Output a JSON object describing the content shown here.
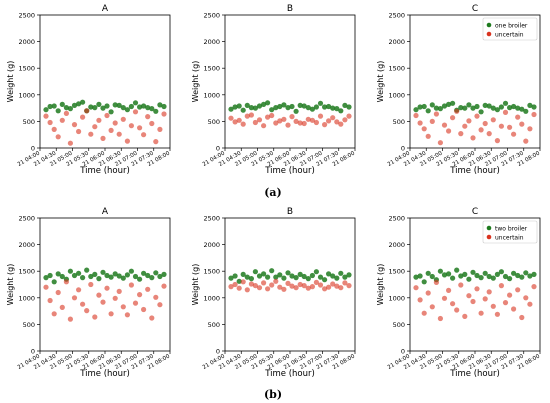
{
  "captions": [
    "(a)",
    "(b)"
  ],
  "legend_colors": {
    "green": "#1e7a1e",
    "red": "#d9331f"
  },
  "chart_data": [
    {
      "type": "scatter",
      "title": "A",
      "xlabel": "Time (hour)",
      "ylabel": "Weight (g)",
      "ylim": [
        0,
        2500
      ],
      "yticks": [
        0,
        500,
        1000,
        1500,
        2000,
        2500
      ],
      "xticks": [
        "21 04:00",
        "21 04:30",
        "21 05:00",
        "21 05:30",
        "21 06:00",
        "21 06:30",
        "21 07:00",
        "21 07:30",
        "21 08:00"
      ],
      "legend": null,
      "series": [
        {
          "name": "one broiler",
          "color": "#1e7a1e",
          "values": [
            720,
            780,
            790,
            700,
            820,
            760,
            740,
            800,
            830,
            860,
            700,
            770,
            760,
            820,
            750,
            790,
            680,
            810,
            800,
            760,
            720,
            780,
            850,
            770,
            790,
            760,
            740,
            690,
            810,
            780
          ]
        },
        {
          "name": "uncertain",
          "color": "#d9331f",
          "values": [
            600,
            480,
            350,
            210,
            520,
            650,
            90,
            440,
            310,
            580,
            700,
            260,
            400,
            520,
            180,
            610,
            330,
            470,
            260,
            540,
            130,
            420,
            680,
            380,
            250,
            590,
            460,
            120,
            350,
            640
          ]
        }
      ]
    },
    {
      "type": "scatter",
      "title": "B",
      "xlabel": "Time (hour)",
      "ylabel": "Weight (g)",
      "ylim": [
        0,
        2500
      ],
      "yticks": [
        0,
        500,
        1000,
        1500,
        2000,
        2500
      ],
      "xticks": [
        "21 04:00",
        "21 04:30",
        "21 05:00",
        "21 05:30",
        "21 06:00",
        "21 06:30",
        "21 07:00",
        "21 07:30",
        "21 08:00"
      ],
      "legend": null,
      "series": [
        {
          "name": "one broiler",
          "color": "#1e7a1e",
          "values": [
            730,
            770,
            790,
            710,
            800,
            760,
            750,
            790,
            820,
            850,
            720,
            760,
            780,
            810,
            760,
            780,
            690,
            800,
            790,
            760,
            730,
            770,
            840,
            770,
            780,
            750,
            740,
            700,
            800,
            770
          ]
        },
        {
          "name": "uncertain",
          "color": "#d9331f",
          "values": [
            560,
            490,
            520,
            450,
            600,
            620,
            480,
            530,
            420,
            580,
            610,
            470,
            510,
            540,
            430,
            590,
            500,
            470,
            460,
            540,
            520,
            480,
            600,
            440,
            510,
            570,
            490,
            450,
            530,
            600
          ]
        }
      ]
    },
    {
      "type": "scatter",
      "title": "C",
      "xlabel": "Time (hour)",
      "ylabel": "Weight (g)",
      "ylim": [
        0,
        2500
      ],
      "yticks": [
        0,
        500,
        1000,
        1500,
        2000,
        2500
      ],
      "xticks": [
        "21 04:00",
        "21 04:30",
        "21 05:00",
        "21 05:30",
        "21 06:00",
        "21 06:30",
        "21 07:00",
        "21 07:30",
        "21 08:00"
      ],
      "legend": "top-right",
      "series": [
        {
          "name": "one broiler",
          "color": "#1e7a1e",
          "values": [
            720,
            770,
            780,
            700,
            810,
            750,
            740,
            790,
            820,
            840,
            710,
            760,
            750,
            810,
            750,
            780,
            680,
            800,
            790,
            750,
            720,
            770,
            840,
            760,
            780,
            750,
            730,
            690,
            800,
            770
          ]
        },
        {
          "name": "uncertain",
          "color": "#d9331f",
          "values": [
            610,
            470,
            360,
            220,
            500,
            640,
            100,
            430,
            320,
            570,
            690,
            270,
            410,
            510,
            190,
            600,
            340,
            460,
            270,
            530,
            140,
            410,
            670,
            390,
            260,
            580,
            450,
            130,
            360,
            630
          ]
        }
      ]
    },
    {
      "type": "scatter",
      "title": "A",
      "xlabel": "Time (hour)",
      "ylabel": "Weight (g)",
      "ylim": [
        0,
        2500
      ],
      "yticks": [
        0,
        500,
        1000,
        1500,
        2000,
        2500
      ],
      "xticks": [
        "21 04:00",
        "21 04:30",
        "21 05:00",
        "21 05:30",
        "21 06:00",
        "21 06:30",
        "21 07:00",
        "21 07:30",
        "21 08:00"
      ],
      "legend": null,
      "series": [
        {
          "name": "two broiler",
          "color": "#1e7a1e",
          "values": [
            1380,
            1420,
            1300,
            1450,
            1400,
            1350,
            1500,
            1420,
            1460,
            1380,
            1520,
            1400,
            1440,
            1360,
            1480,
            1420,
            1390,
            1450,
            1410,
            1370,
            1430,
            1500,
            1400,
            1350,
            1460,
            1420,
            1380,
            1470,
            1400,
            1440
          ]
        },
        {
          "name": "uncertain",
          "color": "#d9331f",
          "values": [
            1200,
            950,
            700,
            1100,
            820,
            1300,
            600,
            1000,
            1150,
            880,
            760,
            1250,
            640,
            1050,
            920,
            1180,
            700,
            990,
            1120,
            830,
            680,
            1240,
            900,
            1060,
            780,
            1160,
            620,
            1010,
            870,
            1220
          ]
        }
      ]
    },
    {
      "type": "scatter",
      "title": "B",
      "xlabel": "Time (hour)",
      "ylabel": "Weight (g)",
      "ylim": [
        0,
        2500
      ],
      "yticks": [
        0,
        500,
        1000,
        1500,
        2000,
        2500
      ],
      "xticks": [
        "21 04:00",
        "21 04:30",
        "21 05:00",
        "21 05:30",
        "21 06:00",
        "21 06:30",
        "21 07:00",
        "21 07:30",
        "21 08:00"
      ],
      "legend": null,
      "series": [
        {
          "name": "two broiler",
          "color": "#1e7a1e",
          "values": [
            1370,
            1410,
            1310,
            1440,
            1390,
            1360,
            1490,
            1410,
            1450,
            1390,
            1510,
            1390,
            1430,
            1370,
            1470,
            1410,
            1380,
            1440,
            1400,
            1360,
            1420,
            1490,
            1390,
            1340,
            1450,
            1410,
            1370,
            1460,
            1390,
            1430
          ]
        },
        {
          "name": "uncertain",
          "color": "#d9331f",
          "values": [
            1210,
            1250,
            1180,
            1300,
            1150,
            1260,
            1230,
            1190,
            1280,
            1170,
            1240,
            1310,
            1200,
            1160,
            1270,
            1220,
            1190,
            1250,
            1230,
            1180,
            1210,
            1290,
            1240,
            1170,
            1200,
            1260,
            1220,
            1190,
            1280,
            1230
          ]
        }
      ]
    },
    {
      "type": "scatter",
      "title": "C",
      "xlabel": "Time (hour)",
      "ylabel": "Weight (g)",
      "ylim": [
        0,
        2500
      ],
      "yticks": [
        0,
        500,
        1000,
        1500,
        2000,
        2500
      ],
      "xticks": [
        "21 04:00",
        "21 04:30",
        "21 05:00",
        "21 05:30",
        "21 06:00",
        "21 06:30",
        "21 07:00",
        "21 07:30",
        "21 08:00"
      ],
      "legend": "top-right",
      "series": [
        {
          "name": "two broiler",
          "color": "#1e7a1e",
          "values": [
            1390,
            1410,
            1300,
            1460,
            1400,
            1340,
            1500,
            1430,
            1450,
            1370,
            1520,
            1410,
            1440,
            1350,
            1480,
            1420,
            1380,
            1460,
            1400,
            1370,
            1440,
            1490,
            1400,
            1360,
            1460,
            1420,
            1390,
            1470,
            1410,
            1440
          ]
        },
        {
          "name": "uncertain",
          "color": "#d9331f",
          "values": [
            1190,
            960,
            710,
            1090,
            830,
            1290,
            610,
            990,
            1140,
            890,
            770,
            1240,
            650,
            1040,
            930,
            1170,
            710,
            980,
            1110,
            840,
            690,
            1230,
            910,
            1050,
            790,
            1150,
            630,
            1000,
            880,
            1210
          ]
        }
      ]
    }
  ]
}
